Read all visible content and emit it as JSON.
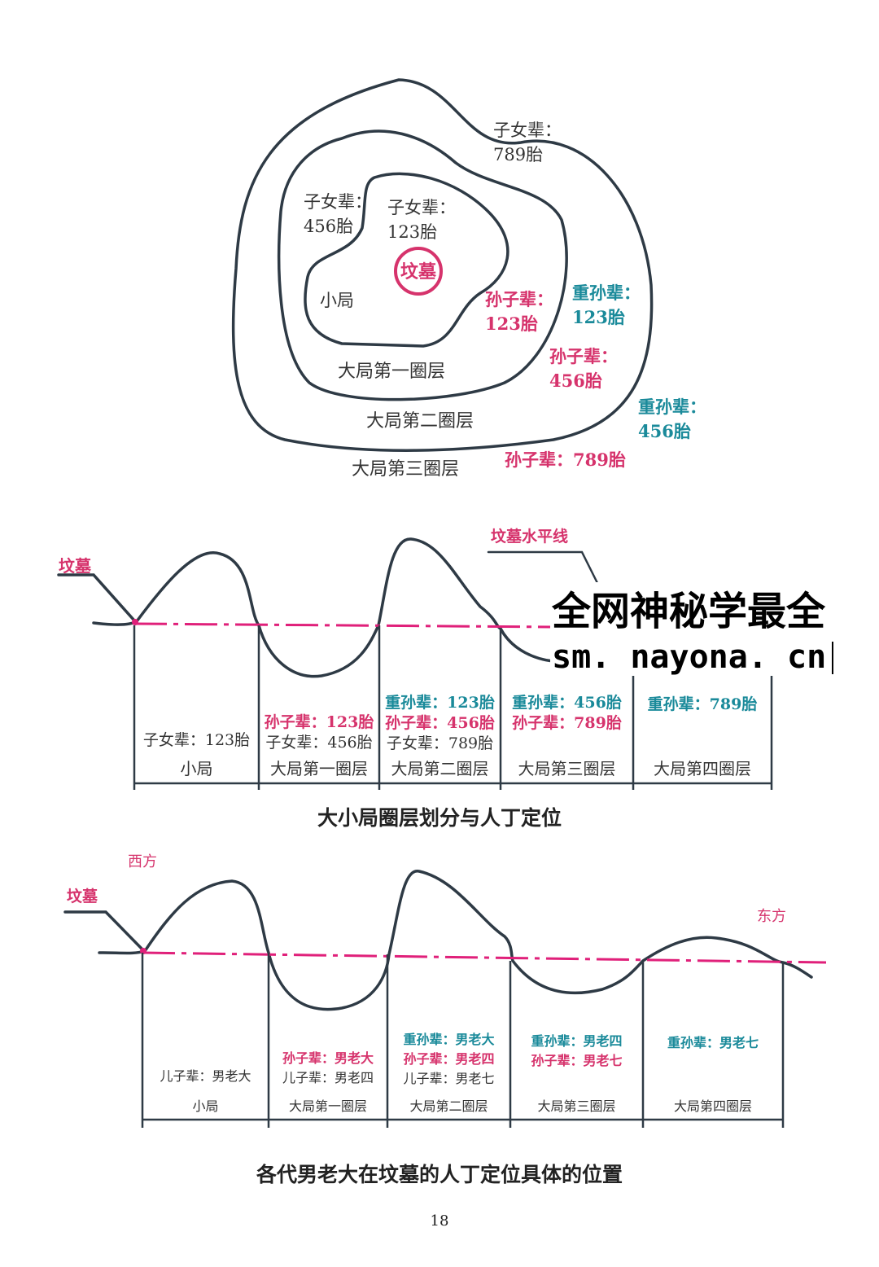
{
  "top_diagram": {
    "center": "坟墓",
    "inner": "小局",
    "rings": [
      "大局第一圈层",
      "大局第二圈层",
      "大局第三圈层"
    ],
    "notes": [
      {
        "lines": [
          "子女辈：",
          "123胎"
        ],
        "color": "#333333"
      },
      {
        "lines": [
          "子女辈：",
          "456胎"
        ],
        "color": "#333333"
      },
      {
        "lines": [
          "子女辈：",
          "789胎"
        ],
        "color": "#333333"
      },
      {
        "lines": [
          "孙子辈：",
          "123胎"
        ],
        "color": "#d6336c"
      },
      {
        "lines": [
          "孙子辈：",
          "456胎"
        ],
        "color": "#d6336c"
      },
      {
        "lines": [
          "孙子辈：789胎"
        ],
        "color": "#d6336c"
      },
      {
        "lines": [
          "重孙辈：",
          "123胎"
        ],
        "color": "#1a8a9a"
      },
      {
        "lines": [
          "重孙辈：",
          "456胎"
        ],
        "color": "#1a8a9a"
      }
    ]
  },
  "profile_1": {
    "tomb": "坟墓",
    "horizon": "坟墓水平线",
    "columns": [
      {
        "lines": [
          {
            "text": "子女辈：123胎",
            "color": "#333333"
          }
        ],
        "name": "小局"
      },
      {
        "lines": [
          {
            "text": "孙子辈：123胎",
            "color": "#d6336c"
          },
          {
            "text": "子女辈：456胎",
            "color": "#333333"
          }
        ],
        "name": "大局第一圈层"
      },
      {
        "lines": [
          {
            "text": "重孙辈：123胎",
            "color": "#1a8a9a"
          },
          {
            "text": "孙子辈：456胎",
            "color": "#d6336c"
          },
          {
            "text": "子女辈：789胎",
            "color": "#333333"
          }
        ],
        "name": "大局第二圈层"
      },
      {
        "lines": [
          {
            "text": "重孙辈：456胎",
            "color": "#1a8a9a"
          },
          {
            "text": "孙子辈：789胎",
            "color": "#d6336c"
          }
        ],
        "name": "大局第三圈层"
      },
      {
        "lines": [
          {
            "text": "重孙辈：789胎",
            "color": "#1a8a9a"
          }
        ],
        "name": "大局第四圈层"
      }
    ],
    "caption": "大小局圈层划分与人丁定位"
  },
  "profile_2": {
    "west": "西方",
    "east": "东方",
    "tomb": "坟墓",
    "columns": [
      {
        "lines": [
          {
            "text": "儿子辈：男老大",
            "color": "#333333"
          }
        ],
        "name": "小局"
      },
      {
        "lines": [
          {
            "text": "孙子辈：男老大",
            "color": "#d6336c"
          },
          {
            "text": "儿子辈：男老四",
            "color": "#333333"
          }
        ],
        "name": "大局第一圈层"
      },
      {
        "lines": [
          {
            "text": "重孙辈：男老大",
            "color": "#1a8a9a"
          },
          {
            "text": "孙子辈：男老四",
            "color": "#d6336c"
          },
          {
            "text": "儿子辈：男老七",
            "color": "#333333"
          }
        ],
        "name": "大局第二圈层"
      },
      {
        "lines": [
          {
            "text": "重孙辈：男老四",
            "color": "#1a8a9a"
          },
          {
            "text": "孙子辈：男老七",
            "color": "#d6336c"
          }
        ],
        "name": "大局第三圈层"
      },
      {
        "lines": [
          {
            "text": "重孙辈：男老七",
            "color": "#1a8a9a"
          }
        ],
        "name": "大局第四圈层"
      }
    ],
    "caption": "各代男老大在坟墓的人丁定位具体的位置"
  },
  "page_number": "18",
  "watermark": [
    "全网神秘学最全",
    "sm. nayona. cn"
  ]
}
